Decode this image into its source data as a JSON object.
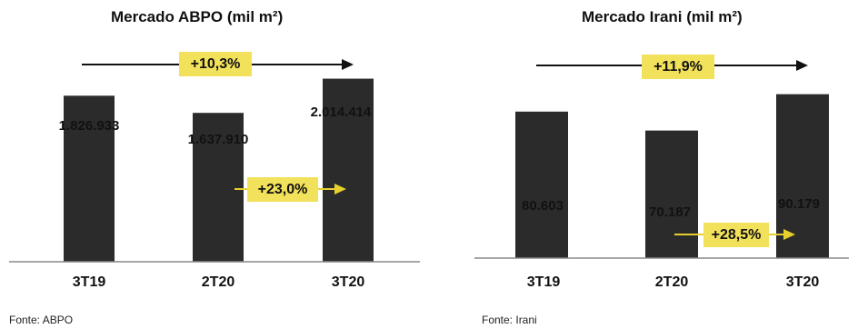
{
  "colors": {
    "bar": "#2b2b2b",
    "accent": "#f2e15a",
    "arrow": "#e6cf2e",
    "axis": "#888888"
  },
  "chart_data": [
    {
      "type": "bar",
      "title": "Mercado ABPO (mil m²)",
      "categories": [
        "3T19",
        "2T20",
        "3T20"
      ],
      "values": [
        1826933,
        1637910,
        2014414
      ],
      "value_labels": [
        "1.826.933",
        "1.637.910",
        "2.014.414"
      ],
      "ylim": [
        0,
        2500000
      ],
      "trend_label": "+10,3%",
      "change_label": "+23,0%",
      "source": "Fonte: ABPO"
    },
    {
      "type": "bar",
      "title": "Mercado Irani (mil m²)",
      "categories": [
        "3T19",
        "2T20",
        "3T20"
      ],
      "values": [
        80603,
        70187,
        90179
      ],
      "value_labels": [
        "80.603",
        "70.187",
        "90.179"
      ],
      "ylim": [
        0,
        250000
      ],
      "trend_label": "+11,9%",
      "change_label": "+28,5%",
      "source": "Fonte: Irani"
    }
  ]
}
